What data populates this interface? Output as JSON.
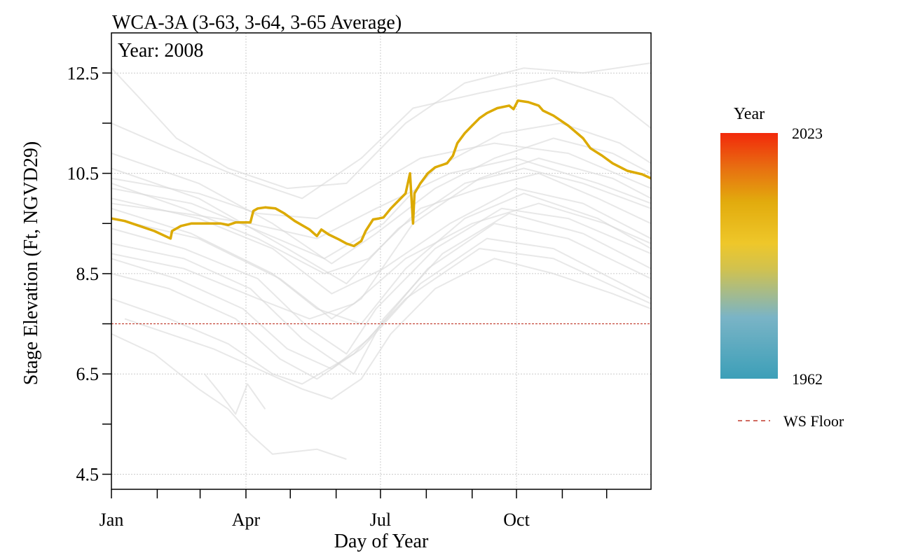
{
  "chart_data": {
    "type": "line",
    "title": "WCA-3A (3-63, 3-64, 3-65 Average)",
    "subtitle": "Year: 2008",
    "xlabel": "Day of Year",
    "ylabel": "Stage Elevation (Ft, NGVD29)",
    "xlim": [
      1,
      366
    ],
    "ylim": [
      4.2,
      13.3
    ],
    "x_ticks": [
      {
        "day": 1,
        "label": "Jan"
      },
      {
        "day": 92,
        "label": "Apr"
      },
      {
        "day": 183,
        "label": "Jul"
      },
      {
        "day": 275,
        "label": "Oct"
      }
    ],
    "x_minor_ticks": [
      32,
      61,
      122,
      153,
      214,
      245,
      306,
      336
    ],
    "y_ticks": [
      {
        "value": 4.5,
        "label": "4.5"
      },
      {
        "value": 6.5,
        "label": "6.5"
      },
      {
        "value": 8.5,
        "label": "8.5"
      },
      {
        "value": 10.5,
        "label": "10.5"
      },
      {
        "value": 12.5,
        "label": "12.5"
      }
    ],
    "y_minor_ticks": [
      5.5,
      7.5,
      9.5,
      11.5
    ],
    "grid": true,
    "reference_line": {
      "name": "WS Floor",
      "value": 7.5,
      "color": "#c0392b",
      "style": "dashed"
    },
    "highlight_series": {
      "name": "2008",
      "color": "#dcaa00",
      "points": [
        [
          1,
          9.6
        ],
        [
          10,
          9.55
        ],
        [
          20,
          9.45
        ],
        [
          30,
          9.35
        ],
        [
          41,
          9.2
        ],
        [
          42,
          9.35
        ],
        [
          48,
          9.45
        ],
        [
          55,
          9.5
        ],
        [
          65,
          9.5
        ],
        [
          75,
          9.5
        ],
        [
          80,
          9.47
        ],
        [
          85,
          9.52
        ],
        [
          95,
          9.52
        ],
        [
          97,
          9.75
        ],
        [
          100,
          9.8
        ],
        [
          105,
          9.82
        ],
        [
          112,
          9.8
        ],
        [
          118,
          9.7
        ],
        [
          125,
          9.55
        ],
        [
          135,
          9.38
        ],
        [
          140,
          9.25
        ],
        [
          143,
          9.38
        ],
        [
          148,
          9.28
        ],
        [
          155,
          9.18
        ],
        [
          160,
          9.1
        ],
        [
          165,
          9.05
        ],
        [
          170,
          9.15
        ],
        [
          173,
          9.35
        ],
        [
          178,
          9.58
        ],
        [
          182,
          9.6
        ],
        [
          185,
          9.62
        ],
        [
          190,
          9.8
        ],
        [
          195,
          9.95
        ],
        [
          200,
          10.1
        ],
        [
          203,
          10.5
        ],
        [
          204,
          10.0
        ],
        [
          205,
          9.5
        ],
        [
          206,
          10.1
        ],
        [
          210,
          10.3
        ],
        [
          215,
          10.5
        ],
        [
          220,
          10.62
        ],
        [
          228,
          10.7
        ],
        [
          232,
          10.85
        ],
        [
          235,
          11.1
        ],
        [
          240,
          11.3
        ],
        [
          245,
          11.45
        ],
        [
          250,
          11.6
        ],
        [
          255,
          11.7
        ],
        [
          262,
          11.8
        ],
        [
          270,
          11.85
        ],
        [
          273,
          11.78
        ],
        [
          276,
          11.95
        ],
        [
          283,
          11.92
        ],
        [
          290,
          11.85
        ],
        [
          293,
          11.75
        ],
        [
          300,
          11.65
        ],
        [
          310,
          11.45
        ],
        [
          320,
          11.2
        ],
        [
          325,
          11.0
        ],
        [
          333,
          10.85
        ],
        [
          340,
          10.7
        ],
        [
          350,
          10.55
        ],
        [
          360,
          10.48
        ],
        [
          366,
          10.4
        ]
      ]
    },
    "background_series": [
      {
        "name": "gray-01",
        "points": [
          [
            1,
            10.9
          ],
          [
            60,
            10.3
          ],
          [
            110,
            9.5
          ],
          [
            150,
            8.7
          ],
          [
            180,
            9.3
          ],
          [
            220,
            10.2
          ],
          [
            260,
            10.8
          ],
          [
            300,
            11.2
          ],
          [
            340,
            10.9
          ],
          [
            366,
            10.5
          ]
        ]
      },
      {
        "name": "gray-02",
        "points": [
          [
            1,
            10.6
          ],
          [
            60,
            10.0
          ],
          [
            120,
            9.0
          ],
          [
            160,
            8.3
          ],
          [
            195,
            9.4
          ],
          [
            240,
            10.3
          ],
          [
            280,
            10.6
          ],
          [
            320,
            10.3
          ],
          [
            366,
            9.8
          ]
        ]
      },
      {
        "name": "gray-03",
        "points": [
          [
            1,
            10.3
          ],
          [
            50,
            9.8
          ],
          [
            100,
            9.2
          ],
          [
            145,
            8.5
          ],
          [
            175,
            8.8
          ],
          [
            210,
            9.8
          ],
          [
            250,
            10.2
          ],
          [
            290,
            10.5
          ],
          [
            330,
            10.0
          ],
          [
            366,
            9.5
          ]
        ]
      },
      {
        "name": "gray-04",
        "points": [
          [
            1,
            10.0
          ],
          [
            60,
            9.6
          ],
          [
            110,
            9.0
          ],
          [
            150,
            8.1
          ],
          [
            185,
            8.6
          ],
          [
            230,
            9.5
          ],
          [
            275,
            10.2
          ],
          [
            320,
            9.9
          ],
          [
            366,
            9.2
          ]
        ]
      },
      {
        "name": "gray-05",
        "points": [
          [
            1,
            9.8
          ],
          [
            55,
            9.3
          ],
          [
            110,
            8.5
          ],
          [
            140,
            7.8
          ],
          [
            170,
            7.5
          ],
          [
            200,
            8.6
          ],
          [
            240,
            9.6
          ],
          [
            280,
            10.1
          ],
          [
            330,
            9.6
          ],
          [
            366,
            9.0
          ]
        ]
      },
      {
        "name": "gray-06",
        "points": [
          [
            1,
            9.4
          ],
          [
            50,
            9.0
          ],
          [
            100,
            8.4
          ],
          [
            135,
            7.4
          ],
          [
            160,
            6.9
          ],
          [
            180,
            7.8
          ],
          [
            220,
            9.0
          ],
          [
            265,
            9.8
          ],
          [
            310,
            9.6
          ],
          [
            366,
            8.9
          ]
        ]
      },
      {
        "name": "gray-07",
        "points": [
          [
            1,
            9.1
          ],
          [
            50,
            8.8
          ],
          [
            95,
            8.2
          ],
          [
            130,
            7.2
          ],
          [
            165,
            6.5
          ],
          [
            185,
            7.6
          ],
          [
            225,
            8.9
          ],
          [
            270,
            9.7
          ],
          [
            320,
            9.3
          ],
          [
            366,
            8.6
          ]
        ]
      },
      {
        "name": "gray-08",
        "points": [
          [
            1,
            8.8
          ],
          [
            45,
            8.4
          ],
          [
            90,
            7.8
          ],
          [
            120,
            7.0
          ],
          [
            150,
            6.6
          ],
          [
            175,
            7.2
          ],
          [
            215,
            8.6
          ],
          [
            260,
            9.5
          ],
          [
            310,
            9.2
          ],
          [
            366,
            8.4
          ]
        ]
      },
      {
        "name": "gray-09",
        "points": [
          [
            1,
            8.5
          ],
          [
            40,
            8.2
          ],
          [
            85,
            7.6
          ],
          [
            115,
            6.8
          ],
          [
            140,
            6.4
          ],
          [
            170,
            7.0
          ],
          [
            210,
            8.3
          ],
          [
            255,
            9.2
          ],
          [
            300,
            9.0
          ],
          [
            366,
            8.0
          ]
        ]
      },
      {
        "name": "gray-10",
        "points": [
          [
            1,
            8.0
          ],
          [
            40,
            7.6
          ],
          [
            80,
            7.1
          ],
          [
            110,
            6.5
          ],
          [
            130,
            6.3
          ],
          [
            165,
            6.9
          ],
          [
            200,
            8.0
          ],
          [
            250,
            9.0
          ],
          [
            300,
            8.8
          ],
          [
            366,
            7.9
          ]
        ]
      },
      {
        "name": "gray-11",
        "points": [
          [
            1,
            12.6
          ],
          [
            20,
            12.0
          ],
          [
            45,
            11.2
          ],
          [
            80,
            10.6
          ],
          [
            120,
            10.2
          ],
          [
            160,
            10.3
          ],
          [
            200,
            11.5
          ],
          [
            240,
            12.3
          ],
          [
            280,
            12.6
          ],
          [
            320,
            12.5
          ],
          [
            366,
            12.7
          ]
        ]
      },
      {
        "name": "gray-12",
        "points": [
          [
            1,
            11.5
          ],
          [
            40,
            11.0
          ],
          [
            90,
            10.4
          ],
          [
            130,
            10.0
          ],
          [
            170,
            10.8
          ],
          [
            205,
            11.8
          ],
          [
            250,
            12.1
          ],
          [
            300,
            12.4
          ],
          [
            340,
            12.0
          ],
          [
            366,
            11.4
          ]
        ]
      },
      {
        "name": "gray-13",
        "points": [
          [
            1,
            10.4
          ],
          [
            60,
            10.1
          ],
          [
            100,
            9.7
          ],
          [
            140,
            9.6
          ],
          [
            175,
            10.2
          ],
          [
            210,
            10.8
          ],
          [
            260,
            11.1
          ],
          [
            310,
            10.9
          ],
          [
            366,
            10.2
          ]
        ]
      },
      {
        "name": "gray-14",
        "points": [
          [
            1,
            9.9
          ],
          [
            50,
            9.7
          ],
          [
            95,
            9.5
          ],
          [
            140,
            9.2
          ],
          [
            180,
            9.8
          ],
          [
            230,
            10.5
          ],
          [
            275,
            10.8
          ],
          [
            330,
            10.3
          ],
          [
            366,
            9.9
          ]
        ]
      },
      {
        "name": "gray-15",
        "points": [
          [
            1,
            7.3
          ],
          [
            30,
            6.9
          ],
          [
            60,
            6.2
          ],
          [
            80,
            5.8
          ],
          [
            95,
            5.3
          ],
          [
            110,
            4.9
          ],
          [
            140,
            5.0
          ],
          [
            160,
            4.8
          ]
        ]
      },
      {
        "name": "gray-16",
        "points": [
          [
            64,
            6.5
          ],
          [
            75,
            6.1
          ],
          [
            85,
            5.7
          ],
          [
            93,
            6.3
          ],
          [
            105,
            5.8
          ]
        ]
      },
      {
        "name": "gray-17",
        "points": [
          [
            10,
            7.6
          ],
          [
            40,
            7.3
          ],
          [
            70,
            7.0
          ],
          [
            100,
            6.6
          ],
          [
            130,
            6.2
          ],
          [
            150,
            6.0
          ],
          [
            170,
            6.4
          ],
          [
            190,
            7.3
          ],
          [
            220,
            8.2
          ],
          [
            260,
            8.8
          ],
          [
            300,
            8.5
          ],
          [
            340,
            8.1
          ],
          [
            366,
            7.8
          ]
        ]
      },
      {
        "name": "gray-18",
        "points": [
          [
            1,
            9.6
          ],
          [
            60,
            9.2
          ],
          [
            115,
            8.4
          ],
          [
            150,
            7.6
          ],
          [
            170,
            8.0
          ],
          [
            205,
            9.5
          ],
          [
            250,
            10.4
          ],
          [
            290,
            10.8
          ],
          [
            340,
            10.4
          ],
          [
            366,
            10.0
          ]
        ]
      },
      {
        "name": "gray-19",
        "points": [
          [
            1,
            10.2
          ],
          [
            55,
            9.9
          ],
          [
            105,
            9.3
          ],
          [
            145,
            8.8
          ],
          [
            185,
            9.5
          ],
          [
            220,
            10.6
          ],
          [
            265,
            11.3
          ],
          [
            305,
            11.5
          ],
          [
            345,
            11.1
          ],
          [
            366,
            10.7
          ]
        ]
      },
      {
        "name": "gray-20",
        "points": [
          [
            1,
            8.9
          ],
          [
            50,
            8.6
          ],
          [
            100,
            8.0
          ],
          [
            135,
            7.6
          ],
          [
            165,
            7.9
          ],
          [
            200,
            8.8
          ],
          [
            245,
            9.5
          ],
          [
            290,
            9.9
          ],
          [
            335,
            9.5
          ],
          [
            366,
            9.1
          ]
        ]
      }
    ]
  },
  "legend": {
    "colorbar_title": "Year",
    "colorbar_max_label": "2023",
    "colorbar_min_label": "1962",
    "colorbar_colors": [
      "#3c9fb8",
      "#7ab4c6",
      "#d2c24d",
      "#eec72a",
      "#e2ab0d",
      "#e86e11",
      "#f2290b"
    ],
    "ws_floor_label": "WS Floor"
  }
}
